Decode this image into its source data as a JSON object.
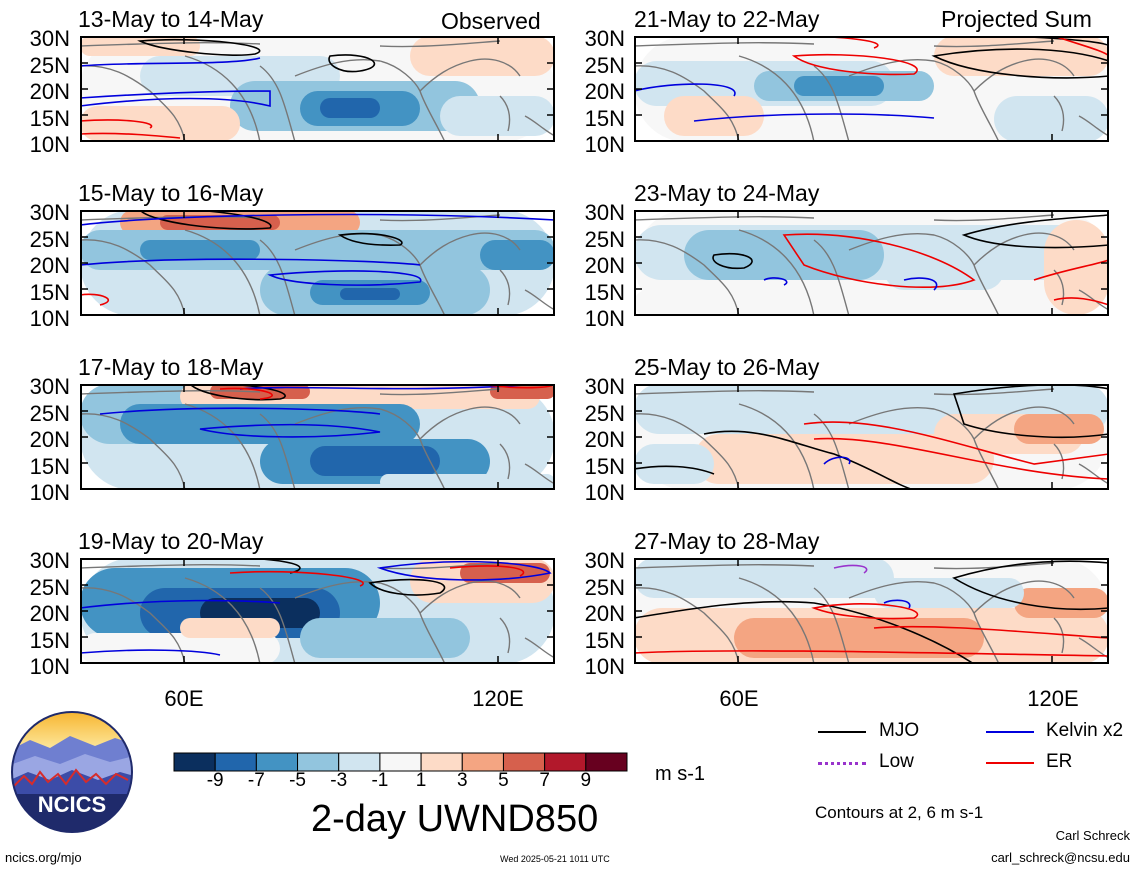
{
  "panels": {
    "p0": {
      "title": "13-May to 14-May",
      "tag": "Observed"
    },
    "p1": {
      "title": "15-May to 16-May"
    },
    "p2": {
      "title": "17-May to 18-May"
    },
    "p3": {
      "title": "19-May to 20-May"
    },
    "p4": {
      "title": "21-May to 22-May",
      "tag": "Projected Sum"
    },
    "p5": {
      "title": "23-May to 24-May"
    },
    "p6": {
      "title": "25-May to 26-May"
    },
    "p7": {
      "title": "27-May to 28-May"
    }
  },
  "lat_labels": [
    "30N",
    "25N",
    "20N",
    "15N",
    "10N"
  ],
  "lon_labels": [
    "60E",
    "120E"
  ],
  "colorbar": {
    "labels": [
      "-9",
      "-7",
      "-5",
      "-3",
      "-1",
      "1",
      "3",
      "5",
      "7",
      "9"
    ],
    "colors": [
      "#0b2f5e",
      "#2166ac",
      "#4393c3",
      "#92c5de",
      "#d1e5f0",
      "#f7f7f7",
      "#fddbc7",
      "#f4a582",
      "#d6604d",
      "#b2182b",
      "#67001f"
    ],
    "units": "m s-1"
  },
  "title": "2-day UWND850",
  "legend": {
    "mjo": {
      "label": "MJO",
      "color": "#000000"
    },
    "kelvin": {
      "label": "Kelvin x2",
      "color": "#0000dd"
    },
    "low": {
      "label": "Low",
      "color": "#9933cc"
    },
    "er": {
      "label": "ER",
      "color": "#ee0000"
    }
  },
  "contour_note": "Contours at 2, 6 m s-1",
  "credit": {
    "name": "Carl Schreck",
    "email": "carl_schreck@ncsu.edu",
    "site": "ncics.org/mjo",
    "timestamp": "Wed 2025-05-21 1011 UTC",
    "logo_text": "NCICS"
  }
}
